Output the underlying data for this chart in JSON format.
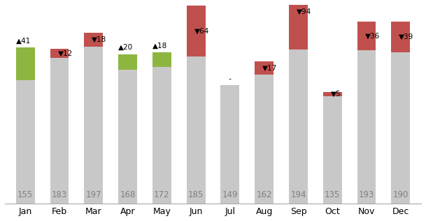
{
  "months": [
    "Jan",
    "Feb",
    "Mar",
    "Apr",
    "May",
    "Jun",
    "Jul",
    "Aug",
    "Sep",
    "Oct",
    "Nov",
    "Dec"
  ],
  "budget": [
    155,
    183,
    197,
    168,
    172,
    185,
    149,
    162,
    194,
    135,
    193,
    190
  ],
  "variance": [
    41,
    -12,
    -18,
    20,
    18,
    -64,
    0,
    -17,
    -94,
    -5,
    -36,
    -39
  ],
  "variance_label": [
    "41",
    "12",
    "18",
    "20",
    "18",
    "64",
    "-",
    "17",
    "94",
    "5",
    "36",
    "39"
  ],
  "gray_color": "#c8c8c8",
  "green_color": "#8db641",
  "red_color": "#c0504d",
  "budget_label_color": "#808080",
  "variance_label_color": "#000000",
  "bar_width": 0.55,
  "max_bar_height": 220,
  "background_color": "#ffffff"
}
